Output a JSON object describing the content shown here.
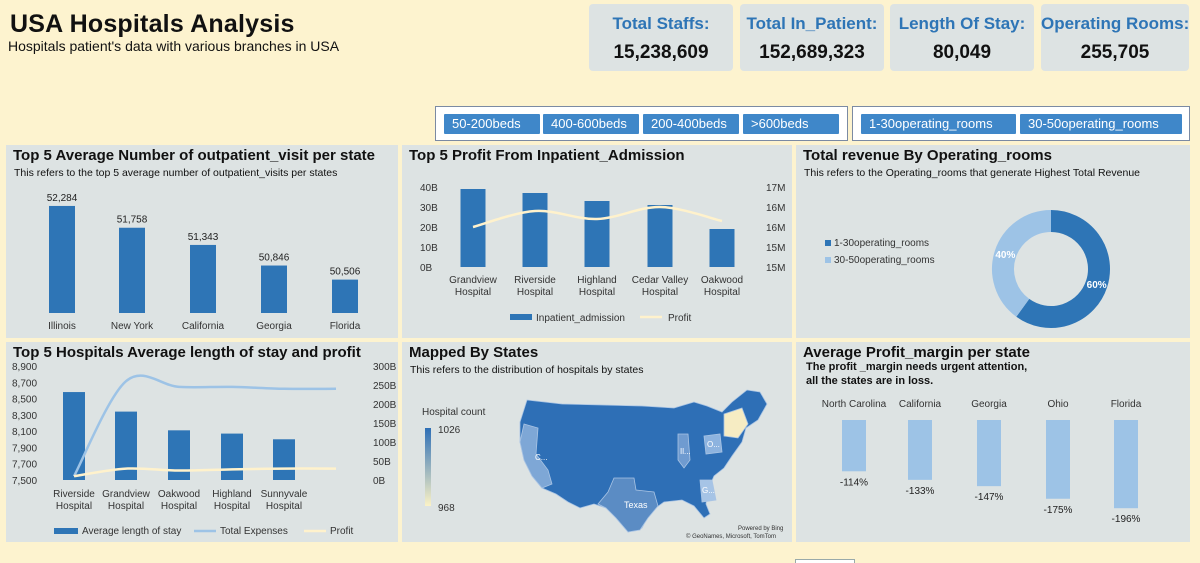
{
  "header": {
    "title": "USA Hospitals Analysis",
    "subtitle": "Hospitals patient's data with various branches in USA"
  },
  "kpis": [
    {
      "label": "Total Staffs:",
      "value": "15,238,609"
    },
    {
      "label": "Total In_Patient:",
      "value": "152,689,323"
    },
    {
      "label": "Length Of Stay:",
      "value": "80,049"
    },
    {
      "label": "Operating Rooms:",
      "value": "255,705"
    }
  ],
  "slicers": {
    "beds": [
      "50-200beds",
      "400-600beds",
      "200-400beds",
      ">600beds"
    ],
    "rooms": [
      "1-30operating_rooms",
      "30-50operating_rooms"
    ]
  },
  "panels": {
    "outpatient": {
      "title": "Top 5 Average Number of outpatient_visit per state",
      "desc": "This refers to the top 5 average number of outpatient_visits per states"
    },
    "profit": {
      "title": "Top 5 Profit From Inpatient_Admission"
    },
    "revenue": {
      "title": "Total revenue By Operating_rooms",
      "desc": "This refers to the Operating_rooms that generate Highest Total Revenue"
    },
    "stay": {
      "title": "Top 5 Hospitals Average length of stay and profit"
    },
    "map": {
      "title": "Mapped By States",
      "desc": "This refers to the distribution of hospitals by states",
      "legend_title": "Hospital count",
      "legend_max": "1026",
      "legend_min": "968",
      "credit1": "Powered by Bing",
      "credit2": "© GeoNames, Microsoft, TomTom",
      "labels": [
        "C...",
        "Il...",
        "O...",
        "G...",
        "Texas"
      ]
    },
    "margin": {
      "title": "Average Profit_margin per state",
      "desc1": "The profit _margin needs urgent attention,",
      "desc2": "all the states are in loss."
    }
  },
  "colors": {
    "primary": "#2e75b6",
    "light": "#9dc3e6",
    "profit_line": "#fff2cc",
    "background": "#fdf3cf",
    "panel": "#dde3e3"
  },
  "chart_data": [
    {
      "id": "outpatient",
      "type": "bar",
      "categories": [
        "Illinois",
        "New York",
        "California",
        "Georgia",
        "Florida"
      ],
      "values": [
        52284,
        51758,
        51343,
        50846,
        50506
      ],
      "labels": [
        "52,284",
        "51,758",
        "51,343",
        "50,846",
        "50,506"
      ],
      "ylim": [
        49700,
        52500
      ]
    },
    {
      "id": "profit",
      "type": "bar",
      "categories": [
        "Grandview\nHospital",
        "Riverside\nHospital",
        "Highland\nHospital",
        "Cedar Valley\nHospital",
        "Oakwood\nHospital"
      ],
      "series": [
        {
          "name": "Inpatient_admission",
          "axis": "right",
          "values": [
            16.6,
            16.5,
            16.3,
            16.2,
            15.6
          ]
        },
        {
          "name": "Profit",
          "axis": "left",
          "type": "line",
          "values": [
            20,
            28,
            24,
            30,
            23
          ]
        }
      ],
      "left_ticks": [
        "40B",
        "30B",
        "20B",
        "10B",
        "0B"
      ],
      "right_ticks": [
        "17M",
        "16M",
        "16M",
        "15M",
        "15M"
      ],
      "left_range": [
        0,
        40
      ],
      "right_range": [
        15,
        17
      ]
    },
    {
      "id": "revenue",
      "type": "pie",
      "series": [
        {
          "name": "1-30operating_rooms",
          "value": 60,
          "label": "60%"
        },
        {
          "name": "30-50operating_rooms",
          "value": 40,
          "label": "40%"
        }
      ]
    },
    {
      "id": "stay",
      "type": "bar",
      "categories": [
        "Riverside\nHospital",
        "Grandview\nHospital",
        "Oakwood\nHospital",
        "Highland\nHospital",
        "Sunnyvale\nHospital"
      ],
      "series": [
        {
          "name": "Average length of stay",
          "axis": "left",
          "values": [
            8580,
            8340,
            8110,
            8070,
            8000
          ]
        },
        {
          "name": "Total Expenses",
          "axis": "right",
          "type": "line",
          "values": [
            10,
            260,
            245,
            245,
            240
          ]
        },
        {
          "name": "Profit",
          "axis": "right",
          "type": "line",
          "values": [
            10,
            30,
            25,
            28,
            30
          ]
        }
      ],
      "left_ticks": [
        "8,900",
        "8,700",
        "8,500",
        "8,300",
        "8,100",
        "7,900",
        "7,700",
        "7,500"
      ],
      "right_ticks": [
        "300B",
        "250B",
        "200B",
        "150B",
        "100B",
        "50B",
        "0B"
      ],
      "left_range": [
        7500,
        8900
      ],
      "right_range": [
        0,
        300
      ]
    },
    {
      "id": "margin",
      "type": "bar",
      "categories": [
        "North Carolina",
        "California",
        "Georgia",
        "Ohio",
        "Florida"
      ],
      "values": [
        -114,
        -133,
        -147,
        -175,
        -196
      ],
      "labels": [
        "-114%",
        "-133%",
        "-147%",
        "-175%",
        "-196%"
      ]
    }
  ]
}
